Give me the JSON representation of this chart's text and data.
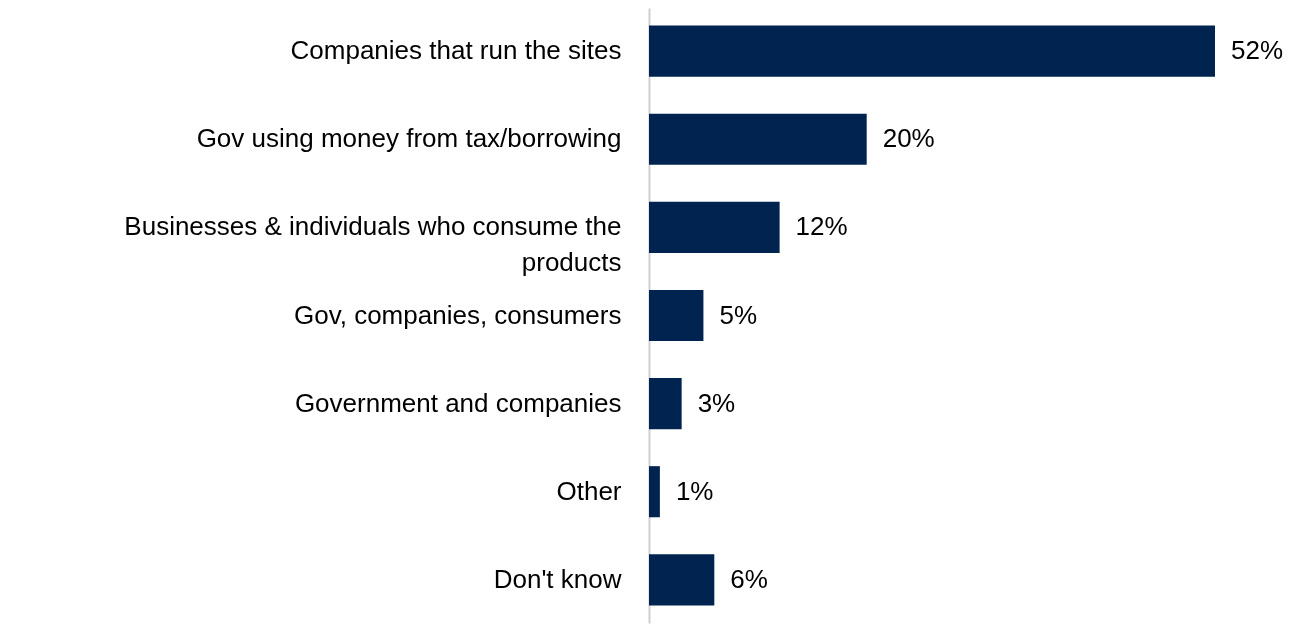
{
  "chart_data": {
    "type": "bar",
    "orientation": "horizontal",
    "categories": [
      "Companies that run the sites",
      "Gov using money from tax/borrowing",
      "Businesses & individuals who consume the products",
      "Gov, companies, consumers",
      "Government and companies",
      "Other",
      "Don't know"
    ],
    "values": [
      52,
      20,
      12,
      5,
      3,
      1,
      6
    ],
    "value_labels": [
      "52%",
      "20%",
      "12%",
      "5%",
      "3%",
      "1%",
      "6%"
    ],
    "color": "#00234f"
  }
}
